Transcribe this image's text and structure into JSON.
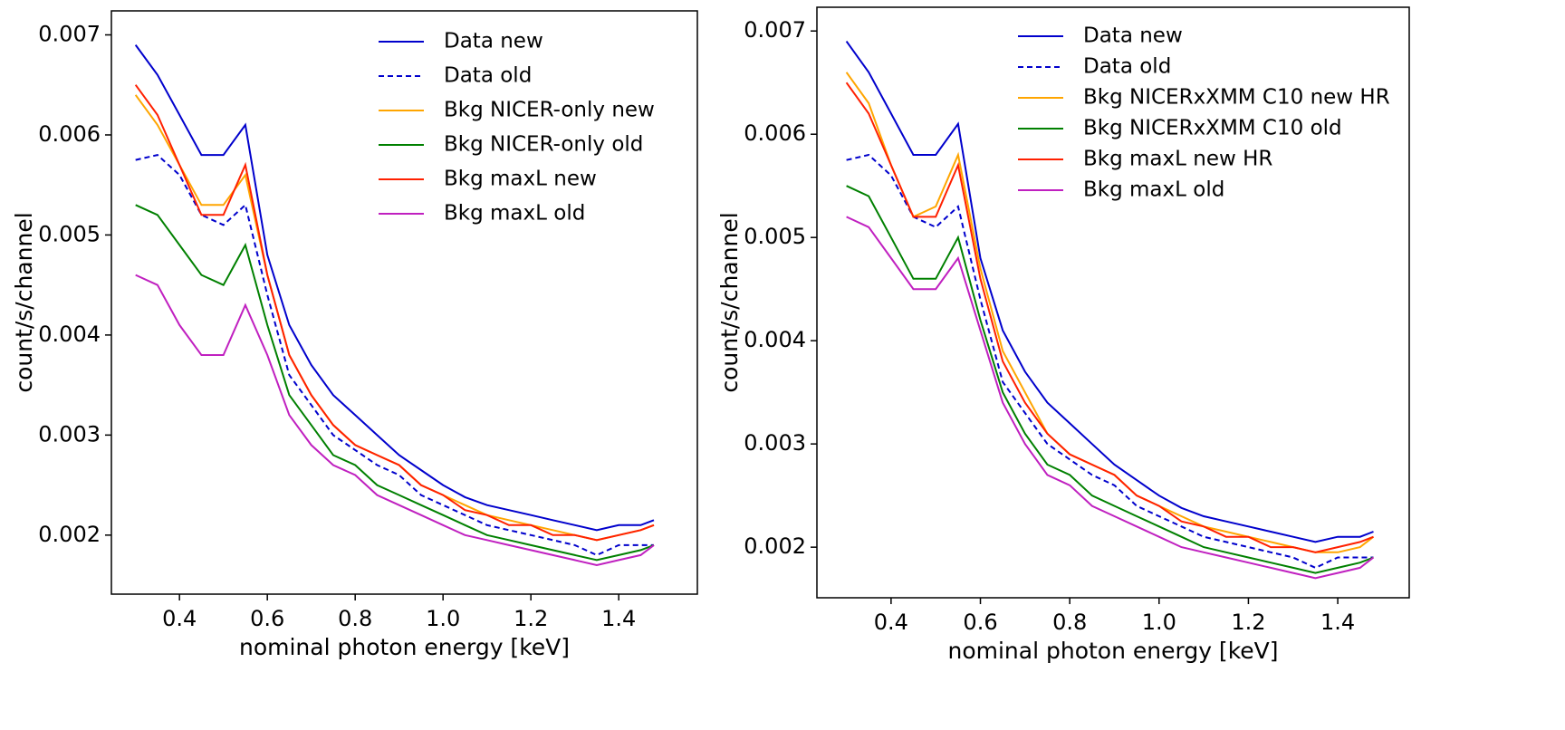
{
  "chart_data": [
    {
      "type": "line",
      "xlabel": "nominal photon energy [keV]",
      "ylabel": "count/s/channel",
      "x": [
        0.3,
        0.35,
        0.4,
        0.45,
        0.5,
        0.55,
        0.6,
        0.65,
        0.7,
        0.75,
        0.8,
        0.85,
        0.9,
        0.95,
        1.0,
        1.05,
        1.1,
        1.15,
        1.2,
        1.25,
        1.3,
        1.35,
        1.4,
        1.45,
        1.48
      ],
      "xlim": [
        0.245,
        1.579
      ],
      "ylim": [
        0.00141,
        0.00724
      ],
      "xticks": [
        0.4,
        0.6,
        0.8,
        {
          "value": 1,
          "label": "1.0"
        },
        1.2,
        1.4
      ],
      "yticks": [
        0.002,
        0.003,
        0.004,
        0.005,
        0.006,
        0.007
      ],
      "legend": "upper right",
      "series": [
        {
          "name": "Data new",
          "color": "#0000cc",
          "dash": false,
          "values": [
            0.0069,
            0.0066,
            0.0062,
            0.0058,
            0.0058,
            0.0061,
            0.0048,
            0.0041,
            0.0037,
            0.0034,
            0.0032,
            0.003,
            0.0028,
            0.00265,
            0.0025,
            0.00238,
            0.0023,
            0.00225,
            0.0022,
            0.00215,
            0.0021,
            0.00205,
            0.0021,
            0.0021,
            0.00215
          ]
        },
        {
          "name": "Data old",
          "color": "#0000cc",
          "dash": true,
          "values": [
            0.00575,
            0.0058,
            0.0056,
            0.0052,
            0.0051,
            0.0053,
            0.0044,
            0.0036,
            0.0033,
            0.003,
            0.00285,
            0.0027,
            0.0026,
            0.0024,
            0.0023,
            0.0022,
            0.0021,
            0.00205,
            0.002,
            0.00195,
            0.0019,
            0.0018,
            0.0019,
            0.0019,
            0.0019
          ]
        },
        {
          "name": "Bkg NICER-only new",
          "color": "#ffa500",
          "dash": false,
          "values": [
            0.0064,
            0.0061,
            0.0057,
            0.0053,
            0.0053,
            0.0056,
            0.0046,
            0.0038,
            0.0034,
            0.0031,
            0.0029,
            0.0028,
            0.0027,
            0.0025,
            0.0024,
            0.0023,
            0.0022,
            0.00215,
            0.0021,
            0.00205,
            0.002,
            0.00195,
            0.002,
            0.00205,
            0.0021
          ]
        },
        {
          "name": "Bkg NICER-only old",
          "color": "#008000",
          "dash": false,
          "values": [
            0.0053,
            0.0052,
            0.0049,
            0.0046,
            0.0045,
            0.0049,
            0.0041,
            0.0034,
            0.0031,
            0.0028,
            0.0027,
            0.0025,
            0.0024,
            0.0023,
            0.0022,
            0.0021,
            0.002,
            0.00195,
            0.0019,
            0.00185,
            0.0018,
            0.00175,
            0.0018,
            0.00185,
            0.0019
          ]
        },
        {
          "name": "Bkg maxL new",
          "color": "#ff2000",
          "dash": false,
          "values": [
            0.0065,
            0.0062,
            0.0057,
            0.0052,
            0.0052,
            0.0057,
            0.0046,
            0.0038,
            0.0034,
            0.0031,
            0.0029,
            0.0028,
            0.0027,
            0.0025,
            0.0024,
            0.00225,
            0.0022,
            0.0021,
            0.0021,
            0.002,
            0.002,
            0.00195,
            0.002,
            0.00205,
            0.0021
          ]
        },
        {
          "name": "Bkg maxL old",
          "color": "#c020c0",
          "dash": false,
          "values": [
            0.0046,
            0.0045,
            0.0041,
            0.0038,
            0.0038,
            0.0043,
            0.0038,
            0.0032,
            0.0029,
            0.0027,
            0.0026,
            0.0024,
            0.0023,
            0.0022,
            0.0021,
            0.002,
            0.00195,
            0.0019,
            0.00185,
            0.0018,
            0.00175,
            0.0017,
            0.00175,
            0.0018,
            0.0019
          ]
        }
      ]
    },
    {
      "type": "line",
      "xlabel": "nominal photon energy [keV]",
      "ylabel": "count/s/channel",
      "x": [
        0.3,
        0.35,
        0.4,
        0.45,
        0.5,
        0.55,
        0.6,
        0.65,
        0.7,
        0.75,
        0.8,
        0.85,
        0.9,
        0.95,
        1.0,
        1.05,
        1.1,
        1.15,
        1.2,
        1.25,
        1.3,
        1.35,
        1.4,
        1.45,
        1.48
      ],
      "xlim": [
        0.234,
        1.56
      ],
      "ylim": [
        0.00151,
        0.00723
      ],
      "xticks": [
        0.4,
        0.6,
        0.8,
        {
          "value": 1,
          "label": "1.0"
        },
        1.2,
        1.4
      ],
      "yticks": [
        0.002,
        0.003,
        0.004,
        0.005,
        0.006,
        0.007
      ],
      "legend": "upper right",
      "series": [
        {
          "name": "Data new",
          "color": "#0000cc",
          "dash": false,
          "values": [
            0.0069,
            0.0066,
            0.0062,
            0.0058,
            0.0058,
            0.0061,
            0.0048,
            0.0041,
            0.0037,
            0.0034,
            0.0032,
            0.003,
            0.0028,
            0.00265,
            0.0025,
            0.00238,
            0.0023,
            0.00225,
            0.0022,
            0.00215,
            0.0021,
            0.00205,
            0.0021,
            0.0021,
            0.00215
          ]
        },
        {
          "name": "Data old",
          "color": "#0000cc",
          "dash": true,
          "values": [
            0.00575,
            0.0058,
            0.0056,
            0.0052,
            0.0051,
            0.0053,
            0.0044,
            0.0036,
            0.0033,
            0.003,
            0.00285,
            0.0027,
            0.0026,
            0.0024,
            0.0023,
            0.0022,
            0.0021,
            0.00205,
            0.002,
            0.00195,
            0.0019,
            0.0018,
            0.0019,
            0.0019,
            0.0019
          ]
        },
        {
          "name": "Bkg NICERxXMM C10 new HR",
          "color": "#ffa500",
          "dash": false,
          "values": [
            0.0066,
            0.0063,
            0.0057,
            0.0052,
            0.0053,
            0.0058,
            0.0047,
            0.0039,
            0.0035,
            0.0031,
            0.0029,
            0.0028,
            0.0027,
            0.0025,
            0.0024,
            0.0023,
            0.0022,
            0.00215,
            0.0021,
            0.00205,
            0.002,
            0.00195,
            0.00195,
            0.002,
            0.0021
          ]
        },
        {
          "name": "Bkg NICERxXMM C10 old",
          "color": "#008000",
          "dash": false,
          "values": [
            0.0055,
            0.0054,
            0.005,
            0.0046,
            0.0046,
            0.005,
            0.0042,
            0.0035,
            0.0031,
            0.0028,
            0.0027,
            0.0025,
            0.0024,
            0.0023,
            0.0022,
            0.0021,
            0.002,
            0.00195,
            0.0019,
            0.00185,
            0.0018,
            0.00175,
            0.0018,
            0.00185,
            0.0019
          ]
        },
        {
          "name": "Bkg maxL new HR",
          "color": "#ff2000",
          "dash": false,
          "values": [
            0.0065,
            0.0062,
            0.0057,
            0.0052,
            0.0052,
            0.0057,
            0.0046,
            0.0038,
            0.0034,
            0.0031,
            0.0029,
            0.0028,
            0.0027,
            0.0025,
            0.0024,
            0.00225,
            0.0022,
            0.0021,
            0.0021,
            0.002,
            0.002,
            0.00195,
            0.002,
            0.00205,
            0.0021
          ]
        },
        {
          "name": "Bkg maxL old",
          "color": "#c020c0",
          "dash": false,
          "values": [
            0.0052,
            0.0051,
            0.0048,
            0.0045,
            0.0045,
            0.0048,
            0.0041,
            0.0034,
            0.003,
            0.0027,
            0.0026,
            0.0024,
            0.0023,
            0.0022,
            0.0021,
            0.002,
            0.00195,
            0.0019,
            0.00185,
            0.0018,
            0.00175,
            0.0017,
            0.00175,
            0.0018,
            0.0019
          ]
        }
      ]
    }
  ]
}
